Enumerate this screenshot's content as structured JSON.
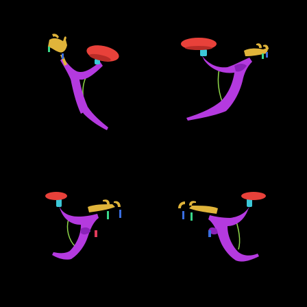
{
  "scene": {
    "background_color": "#000000",
    "subject_icon": "segmented-part-render-icon",
    "view_count": 4
  },
  "palette": {
    "frame": "#b43adf",
    "frame_shadow": "#8a22b8",
    "saddle": "#e8413a",
    "saddle_shadow": "#b82c27",
    "handlebar": "#e0b43a",
    "handlebar_shadow": "#b88a22",
    "stem": "#3cc8d8",
    "cable": "#8fd84a",
    "accent_blue": "#3a6ee0",
    "accent_green": "#3ad88a",
    "accent_red": "#e03a5a"
  }
}
